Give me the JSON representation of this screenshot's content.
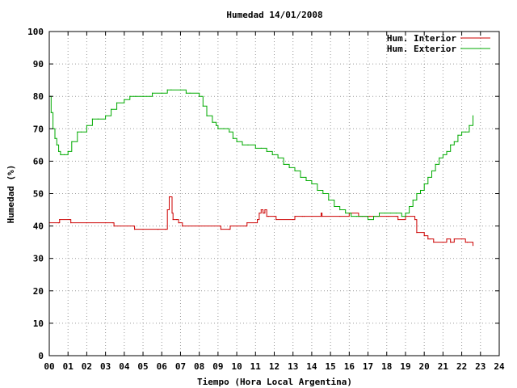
{
  "chart_data": {
    "type": "line",
    "title": "Humedad 14/01/2008",
    "xlabel": "Tiempo (Hora Local Argentina)",
    "ylabel": "Humedad (%)",
    "xlim": [
      0,
      24
    ],
    "ylim": [
      0,
      100
    ],
    "grid": true,
    "legend_position": "top-right",
    "x_ticks": [
      "00",
      "01",
      "02",
      "03",
      "04",
      "05",
      "06",
      "07",
      "08",
      "09",
      "10",
      "11",
      "12",
      "13",
      "14",
      "15",
      "16",
      "17",
      "18",
      "19",
      "20",
      "21",
      "22",
      "23",
      "24"
    ],
    "y_ticks": [
      "0",
      "10",
      "20",
      "30",
      "40",
      "50",
      "60",
      "70",
      "80",
      "90",
      "100"
    ],
    "series": [
      {
        "name": "Hum. Interior",
        "color": "#cc0000",
        "x": [
          0.0,
          0.5,
          0.55,
          1.1,
          1.15,
          2.0,
          3.0,
          3.4,
          3.45,
          4.5,
          4.55,
          5.0,
          5.8,
          6.2,
          6.3,
          6.4,
          6.45,
          6.55,
          6.6,
          6.8,
          6.9,
          7.1,
          8.0,
          9.1,
          9.15,
          9.6,
          9.65,
          10.0,
          10.5,
          10.55,
          11.1,
          11.2,
          11.3,
          11.4,
          11.5,
          11.6,
          11.7,
          12.0,
          12.1,
          13.0,
          13.1,
          13.5,
          13.6,
          14.0,
          14.5,
          14.55,
          15.5,
          16.0,
          16.5,
          17.0,
          17.1,
          18.0,
          18.1,
          18.5,
          18.6,
          19.0,
          19.5,
          19.6,
          20.0,
          20.2,
          20.3,
          20.5,
          21.0,
          21.2,
          21.4,
          21.6,
          22.0,
          22.2,
          22.3,
          22.6
        ],
        "values": [
          41,
          41,
          42,
          42,
          41,
          41,
          41,
          41,
          40,
          40,
          39,
          39,
          39,
          39,
          45,
          49,
          49,
          44,
          42,
          42,
          41,
          40,
          40,
          40,
          39,
          39,
          40,
          40,
          40,
          41,
          42,
          44,
          45,
          44,
          45,
          43,
          43,
          43,
          42,
          42,
          43,
          43,
          43,
          43,
          44,
          43,
          43,
          44,
          43,
          43,
          43,
          43,
          43,
          43,
          42,
          43,
          42,
          38,
          37,
          36,
          36,
          35,
          35,
          36,
          35,
          36,
          36,
          35,
          35,
          34
        ]
      },
      {
        "name": "Hum. Exterior",
        "color": "#00aa00",
        "x": [
          0.0,
          0.1,
          0.2,
          0.3,
          0.4,
          0.5,
          0.6,
          0.8,
          1.0,
          1.2,
          1.5,
          1.7,
          2.0,
          2.3,
          2.6,
          3.0,
          3.3,
          3.6,
          4.0,
          4.3,
          4.6,
          5.0,
          5.5,
          6.0,
          6.3,
          6.5,
          7.0,
          7.3,
          7.5,
          8.0,
          8.2,
          8.4,
          8.7,
          8.9,
          9.0,
          9.3,
          9.6,
          9.8,
          10.0,
          10.3,
          10.6,
          11.0,
          11.3,
          11.6,
          11.9,
          12.2,
          12.5,
          12.8,
          13.1,
          13.4,
          13.7,
          14.0,
          14.3,
          14.6,
          14.9,
          15.2,
          15.5,
          15.8,
          16.1,
          16.4,
          16.7,
          17.0,
          17.3,
          17.6,
          17.9,
          18.2,
          18.5,
          18.8,
          19.0,
          19.2,
          19.4,
          19.6,
          19.8,
          20.0,
          20.2,
          20.4,
          20.6,
          20.8,
          21.0,
          21.2,
          21.4,
          21.6,
          21.8,
          22.0,
          22.2,
          22.4,
          22.6
        ],
        "values": [
          80,
          75,
          70,
          67,
          65,
          63,
          62,
          62,
          63,
          66,
          69,
          69,
          71,
          73,
          73,
          74,
          76,
          78,
          79,
          80,
          80,
          80,
          81,
          81,
          82,
          82,
          82,
          81,
          81,
          80,
          77,
          74,
          72,
          71,
          70,
          70,
          69,
          67,
          66,
          65,
          65,
          64,
          64,
          63,
          62,
          61,
          59,
          58,
          57,
          55,
          54,
          53,
          51,
          50,
          48,
          46,
          45,
          44,
          43,
          43,
          43,
          42,
          43,
          44,
          44,
          44,
          44,
          43,
          44,
          46,
          48,
          50,
          51,
          53,
          55,
          57,
          59,
          61,
          62,
          63,
          65,
          66,
          68,
          69,
          69,
          71,
          74
        ]
      }
    ]
  }
}
